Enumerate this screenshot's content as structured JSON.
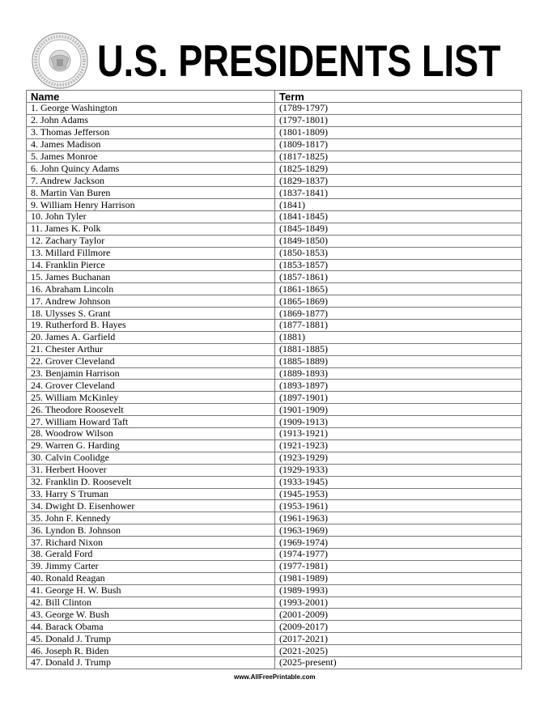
{
  "title": "U.S. PRESIDENTS LIST",
  "seal_text": "SEAL OF THE PRESIDENT OF THE UNITED STATES",
  "table": {
    "headers": [
      "Name",
      "Term"
    ],
    "rows": [
      [
        "1. George Washington",
        "(1789-1797)"
      ],
      [
        "2. John Adams",
        "(1797-1801)"
      ],
      [
        "3. Thomas Jefferson",
        "(1801-1809)"
      ],
      [
        "4. James Madison",
        "(1809-1817)"
      ],
      [
        "5. James Monroe",
        "(1817-1825)"
      ],
      [
        "6. John Quincy Adams",
        "(1825-1829)"
      ],
      [
        "7. Andrew Jackson",
        "(1829-1837)"
      ],
      [
        "8. Martin Van Buren",
        "(1837-1841)"
      ],
      [
        "9. William Henry Harrison",
        "(1841)"
      ],
      [
        "10. John Tyler",
        "(1841-1845)"
      ],
      [
        "11. James K. Polk",
        "(1845-1849)"
      ],
      [
        "12. Zachary Taylor",
        "(1849-1850)"
      ],
      [
        "13. Millard Fillmore",
        "(1850-1853)"
      ],
      [
        "14. Franklin Pierce",
        "(1853-1857)"
      ],
      [
        "15. James Buchanan",
        "(1857-1861)"
      ],
      [
        "16. Abraham Lincoln",
        "(1861-1865)"
      ],
      [
        "17. Andrew Johnson",
        "(1865-1869)"
      ],
      [
        "18. Ulysses S. Grant",
        "(1869-1877)"
      ],
      [
        "19. Rutherford B. Hayes",
        "(1877-1881)"
      ],
      [
        "20. James A. Garfield",
        "(1881)"
      ],
      [
        "21. Chester Arthur",
        "(1881-1885)"
      ],
      [
        "22. Grover Cleveland",
        "(1885-1889)"
      ],
      [
        "23. Benjamin Harrison",
        "(1889-1893)"
      ],
      [
        "24. Grover Cleveland",
        "(1893-1897)"
      ],
      [
        "25. William McKinley",
        "(1897-1901)"
      ],
      [
        "26. Theodore Roosevelt",
        "(1901-1909)"
      ],
      [
        "27. William Howard Taft",
        "(1909-1913)"
      ],
      [
        "28. Woodrow Wilson",
        "(1913-1921)"
      ],
      [
        "29. Warren G. Harding",
        "(1921-1923)"
      ],
      [
        "30. Calvin Coolidge",
        "(1923-1929)"
      ],
      [
        "31. Herbert Hoover",
        "(1929-1933)"
      ],
      [
        "32. Franklin D. Roosevelt",
        "(1933-1945)"
      ],
      [
        "33. Harry S Truman",
        "(1945-1953)"
      ],
      [
        "34. Dwight D. Eisenhower",
        "(1953-1961)"
      ],
      [
        "35. John F. Kennedy",
        "(1961-1963)"
      ],
      [
        "36. Lyndon B. Johnson",
        "(1963-1969)"
      ],
      [
        "37. Richard Nixon",
        "(1969-1974)"
      ],
      [
        "38. Gerald Ford",
        "(1974-1977)"
      ],
      [
        "39. Jimmy Carter",
        "(1977-1981)"
      ],
      [
        "40. Ronald Reagan",
        "(1981-1989)"
      ],
      [
        "41. George H. W. Bush",
        "(1989-1993)"
      ],
      [
        "42. Bill Clinton",
        "(1993-2001)"
      ],
      [
        "43. George W. Bush",
        "(2001-2009)"
      ],
      [
        "44. Barack Obama",
        "(2009-2017)"
      ],
      [
        "45. Donald J. Trump",
        "(2017-2021)"
      ],
      [
        "46. Joseph R. Biden",
        "(2021-2025)"
      ],
      [
        "47. Donald J. Trump",
        "(2025-present)"
      ]
    ]
  },
  "footer": "www.AllFreePrintable.com"
}
